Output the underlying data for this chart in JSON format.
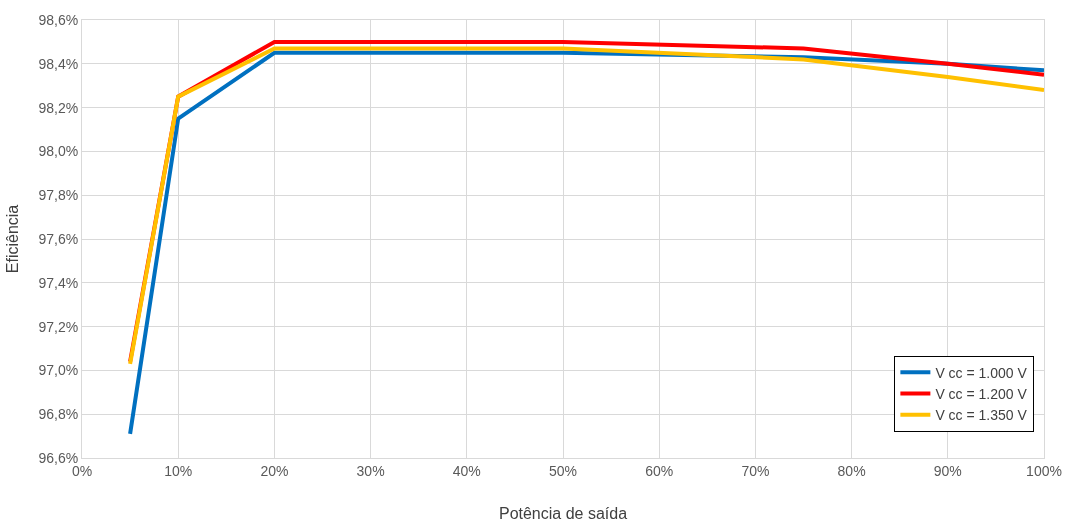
{
  "chart_data": {
    "type": "line",
    "xlabel": "Potência de saída",
    "ylabel": "Eficiência",
    "x": [
      5,
      10,
      20,
      50,
      75,
      90,
      100
    ],
    "series": [
      {
        "name": "V cc = 1.000 V",
        "color": "#0070c0",
        "values": [
          96.71,
          98.15,
          98.45,
          98.45,
          98.43,
          98.4,
          98.37
        ]
      },
      {
        "name": "V cc = 1.200 V",
        "color": "#ff0000",
        "values": [
          97.04,
          98.25,
          98.5,
          98.5,
          98.47,
          98.4,
          98.35
        ]
      },
      {
        "name": "V cc = 1.350 V",
        "color": "#ffc000",
        "values": [
          97.03,
          98.25,
          98.47,
          98.47,
          98.42,
          98.34,
          98.28
        ]
      }
    ],
    "xlim": [
      0,
      100
    ],
    "xticks": [
      {
        "value": 0,
        "label": "0%"
      },
      {
        "value": 10,
        "label": "10%"
      },
      {
        "value": 20,
        "label": "20%"
      },
      {
        "value": 30,
        "label": "30%"
      },
      {
        "value": 40,
        "label": "40%"
      },
      {
        "value": 50,
        "label": "50%"
      },
      {
        "value": 60,
        "label": "60%"
      },
      {
        "value": 70,
        "label": "70%"
      },
      {
        "value": 80,
        "label": "80%"
      },
      {
        "value": 90,
        "label": "90%"
      },
      {
        "value": 100,
        "label": "100%"
      }
    ],
    "ylim": [
      96.6,
      98.6
    ],
    "yticks": [
      {
        "value": 96.6,
        "label": "96,6%"
      },
      {
        "value": 96.8,
        "label": "96,8%"
      },
      {
        "value": 97.0,
        "label": "97,0%"
      },
      {
        "value": 97.2,
        "label": "97,2%"
      },
      {
        "value": 97.4,
        "label": "97,4%"
      },
      {
        "value": 97.6,
        "label": "97,6%"
      },
      {
        "value": 97.8,
        "label": "97,8%"
      },
      {
        "value": 98.0,
        "label": "98,0%"
      },
      {
        "value": 98.2,
        "label": "98,2%"
      },
      {
        "value": 98.4,
        "label": "98,4%"
      },
      {
        "value": 98.6,
        "label": "98,6%"
      }
    ],
    "grid": true,
    "legend": "bottom right",
    "marker": "none",
    "line_style": "solid"
  }
}
